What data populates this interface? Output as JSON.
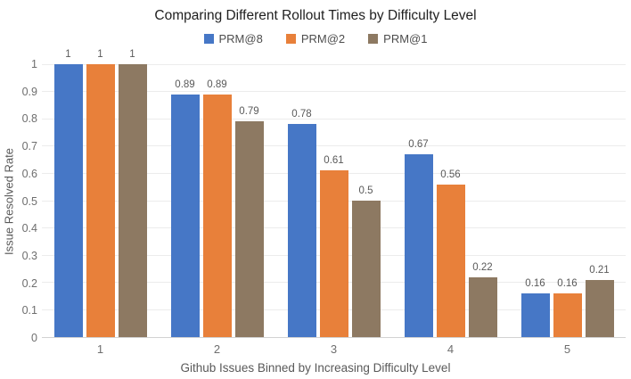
{
  "title": "Comparing Different Rollout Times by Difficulty Level",
  "chart_data": {
    "type": "bar",
    "title": "Comparing Different Rollout Times by Difficulty Level",
    "xlabel": "Github Issues Binned by Increasing Difficulty Level",
    "ylabel": "Issue Resolved Rate",
    "categories": [
      "1",
      "2",
      "3",
      "4",
      "5"
    ],
    "series": [
      {
        "name": "PRM@8",
        "color": "#4677c6",
        "values": [
          1,
          0.89,
          0.78,
          0.67,
          0.16
        ],
        "labels": [
          "1",
          "0.89",
          "0.78",
          "0.67",
          "0.16"
        ]
      },
      {
        "name": "PRM@2",
        "color": "#e8803a",
        "values": [
          1,
          0.89,
          0.61,
          0.56,
          0.16
        ],
        "labels": [
          "1",
          "0.89",
          "0.61",
          "0.56",
          "0.16"
        ]
      },
      {
        "name": "PRM@1",
        "color": "#8d7962",
        "values": [
          1,
          0.79,
          0.5,
          0.22,
          0.21
        ],
        "labels": [
          "1",
          "0.79",
          "0.5",
          "0.22",
          "0.21"
        ]
      }
    ],
    "ylim": [
      0,
      1
    ],
    "ytick_step": 0.1,
    "yticks": [
      "0",
      "0.1",
      "0.2",
      "0.3",
      "0.4",
      "0.5",
      "0.6",
      "0.7",
      "0.8",
      "0.9",
      "1"
    ],
    "legend_position": "top",
    "grid": true,
    "colors": {
      "grid": "#ececec",
      "axis_line": "#d2d2d2",
      "tick_label": "#6e6e6e",
      "axis_title": "#595959",
      "data_label": "#595959",
      "title": "#1f1f1f"
    }
  }
}
